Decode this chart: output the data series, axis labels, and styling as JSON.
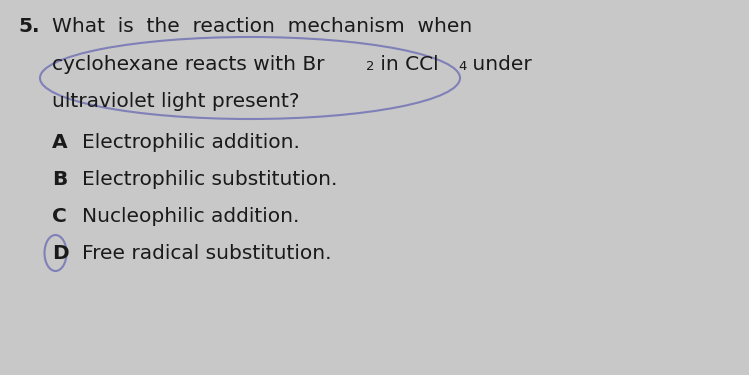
{
  "background_color": "#c8c8c8",
  "question_number": "5.",
  "question_line1": "What  is  the  reaction  mechanism  when",
  "question_line2_parts": [
    {
      "text": "cyclohexane reacts with Br",
      "sub": false
    },
    {
      "text": "2",
      "sub": true
    },
    {
      "text": " in CCl",
      "sub": false
    },
    {
      "text": "4",
      "sub": true
    },
    {
      "text": " under",
      "sub": false
    }
  ],
  "question_line3": "ultraviolet light present?",
  "options": [
    {
      "label": "A",
      "text": "Electrophilic addition."
    },
    {
      "label": "B",
      "text": "Electrophilic substitution."
    },
    {
      "label": "C",
      "text": "Nucleophilic addition."
    },
    {
      "label": "D",
      "text": "Free radical substitution."
    }
  ],
  "circle_uv_color": "#8080b8",
  "circle_D_color": "#8080b8",
  "text_color": "#1a1a1a",
  "font_size_question": 14.5,
  "font_size_options": 14.5,
  "font_size_number": 14.5
}
